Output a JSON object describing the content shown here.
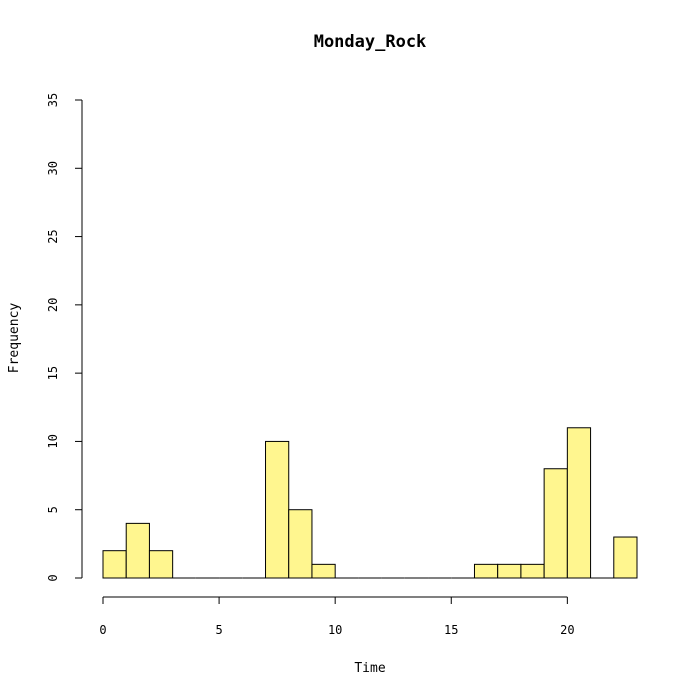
{
  "chart_data": {
    "type": "bar",
    "title": "Monday_Rock",
    "xlabel": "Time",
    "ylabel": "Frequency",
    "bin_width": 1,
    "bins": [
      {
        "start": 0,
        "end": 1,
        "count": 2
      },
      {
        "start": 1,
        "end": 2,
        "count": 4
      },
      {
        "start": 2,
        "end": 3,
        "count": 2
      },
      {
        "start": 3,
        "end": 4,
        "count": 0
      },
      {
        "start": 4,
        "end": 5,
        "count": 0
      },
      {
        "start": 5,
        "end": 6,
        "count": 0
      },
      {
        "start": 6,
        "end": 7,
        "count": 0
      },
      {
        "start": 7,
        "end": 8,
        "count": 10
      },
      {
        "start": 8,
        "end": 9,
        "count": 5
      },
      {
        "start": 9,
        "end": 10,
        "count": 1
      },
      {
        "start": 10,
        "end": 11,
        "count": 0
      },
      {
        "start": 11,
        "end": 12,
        "count": 0
      },
      {
        "start": 12,
        "end": 13,
        "count": 0
      },
      {
        "start": 13,
        "end": 14,
        "count": 0
      },
      {
        "start": 14,
        "end": 15,
        "count": 0
      },
      {
        "start": 15,
        "end": 16,
        "count": 0
      },
      {
        "start": 16,
        "end": 17,
        "count": 1
      },
      {
        "start": 17,
        "end": 18,
        "count": 1
      },
      {
        "start": 18,
        "end": 19,
        "count": 1
      },
      {
        "start": 19,
        "end": 20,
        "count": 8
      },
      {
        "start": 20,
        "end": 21,
        "count": 11
      },
      {
        "start": 21,
        "end": 22,
        "count": 0
      },
      {
        "start": 22,
        "end": 23,
        "count": 3
      }
    ],
    "xlim": [
      0,
      23
    ],
    "ylim": [
      0,
      35
    ],
    "x_ticks": [
      0,
      5,
      10,
      15,
      20
    ],
    "y_ticks": [
      0,
      5,
      10,
      15,
      20,
      25,
      30,
      35
    ],
    "bar_color": "#FFF68F",
    "grid": false,
    "legend": "none"
  }
}
